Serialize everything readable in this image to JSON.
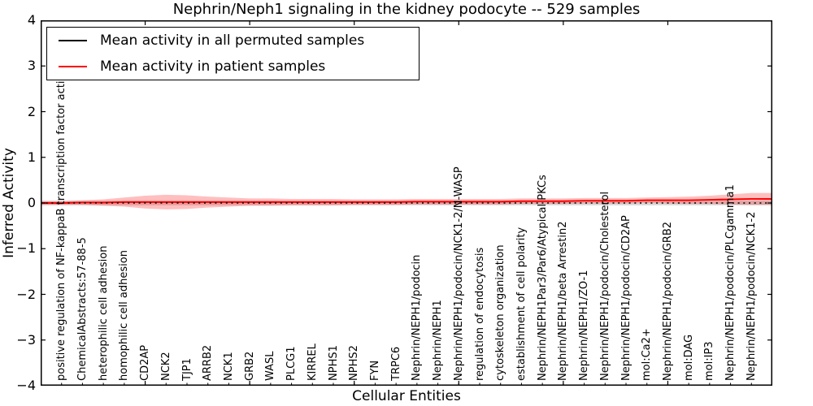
{
  "chart_data": {
    "type": "line",
    "title": "Nephrin/Neph1 signaling in the kidney podocyte -- 529 samples",
    "xlabel": "Cellular Entities",
    "ylabel": "Inferred Activity",
    "xlim": [
      0,
      35
    ],
    "ylim": [
      -4,
      4
    ],
    "grid": false,
    "legend_position": "upper left",
    "yticks": [
      {
        "label": "4",
        "value": 4
      },
      {
        "label": "3",
        "value": 3
      },
      {
        "label": "2",
        "value": 2
      },
      {
        "label": "1",
        "value": 1
      },
      {
        "label": "0",
        "value": 0
      },
      {
        "label": "−1",
        "value": -1
      },
      {
        "label": "−2",
        "value": -2
      },
      {
        "label": "−3",
        "value": -3
      },
      {
        "label": "−4",
        "value": -4
      }
    ],
    "x_major_ticks": [
      5,
      10,
      15,
      20,
      25,
      30
    ],
    "categories": [
      "positive regulation of NF-kappaB transcription factor activity",
      "ChemicalAbstracts:57-88-5",
      "heterophilic cell adhesion",
      "homophilic cell adhesion",
      "CD2AP",
      "NCK2",
      "TJP1",
      "ARRB2",
      "NCK1",
      "GRB2",
      "WASL",
      "PLCG1",
      "KIRREL",
      "NPHS1",
      "NPHS2",
      "FYN",
      "TRPC6",
      "Nephrin/NEPH1/podocin",
      "Nephrin/NEPH1",
      "Nephrin/NEPH1/podocin/NCK1-2/N-WASP",
      "regulation of endocytosis",
      "cytoskeleton organization",
      "establishment of cell polarity",
      "Nephrin/NEPH1Par3/Par6/Atypical PKCs",
      "Nephrin/NEPH1/beta Arrestin2",
      "Nephrin/NEPH1/ZO-1",
      "Nephrin/NEPH1/podocin/Cholesterol",
      "Nephrin/NEPH1/podocin/CD2AP",
      "mol:Ca2+",
      "Nephrin/NEPH1/podocin/GRB2",
      "mol:DAG",
      "mol:IP3",
      "Nephrin/NEPH1/podocin/PLCgamma1",
      "Nephrin/NEPH1/podocin/NCK1-2"
    ],
    "series": [
      {
        "key": "permuted",
        "name": "Mean activity in all permuted samples",
        "color": "#000000",
        "style": "dotted",
        "values": [
          0,
          0,
          0,
          0,
          0,
          0,
          0,
          0,
          0,
          0,
          0,
          0,
          0,
          0,
          0,
          0,
          0,
          0,
          0,
          0,
          0,
          0,
          0,
          0,
          0,
          0,
          0,
          0,
          0,
          0,
          0,
          0,
          0,
          0
        ]
      },
      {
        "key": "patient",
        "name": "Mean activity in patient samples",
        "color": "#ff0000",
        "style": "solid",
        "values": [
          0.0,
          0.01,
          0.01,
          0.02,
          0.02,
          0.02,
          0.02,
          0.02,
          0.02,
          0.02,
          0.02,
          0.02,
          0.02,
          0.02,
          0.02,
          0.02,
          0.02,
          0.03,
          0.03,
          0.03,
          0.03,
          0.03,
          0.04,
          0.04,
          0.04,
          0.05,
          0.05,
          0.05,
          0.06,
          0.06,
          0.06,
          0.07,
          0.08,
          0.09
        ]
      }
    ],
    "bands": [
      {
        "series_key": "permuted",
        "color": "rgba(0,0,0,0.15)",
        "half_widths": [
          0.05,
          0.05,
          0.05,
          0.05,
          0.05,
          0.05,
          0.05,
          0.05,
          0.05,
          0.05,
          0.05,
          0.05,
          0.05,
          0.05,
          0.05,
          0.05,
          0.05,
          0.05,
          0.05,
          0.05,
          0.05,
          0.05,
          0.05,
          0.05,
          0.05,
          0.05,
          0.05,
          0.05,
          0.05,
          0.05,
          0.05,
          0.05,
          0.05,
          0.05
        ]
      },
      {
        "series_key": "patient",
        "color": "rgba(255,0,0,0.25)",
        "half_widths": [
          0.04,
          0.05,
          0.07,
          0.1,
          0.14,
          0.16,
          0.15,
          0.12,
          0.1,
          0.08,
          0.08,
          0.07,
          0.07,
          0.07,
          0.06,
          0.06,
          0.06,
          0.06,
          0.06,
          0.06,
          0.06,
          0.06,
          0.06,
          0.06,
          0.06,
          0.06,
          0.06,
          0.06,
          0.06,
          0.07,
          0.08,
          0.09,
          0.11,
          0.13
        ]
      }
    ]
  }
}
